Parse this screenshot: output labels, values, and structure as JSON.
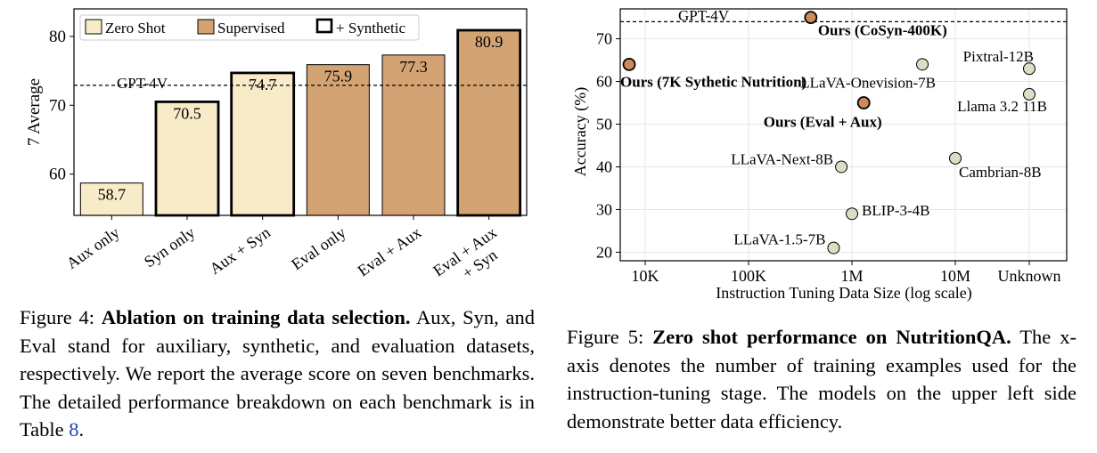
{
  "chart_data": [
    {
      "type": "bar",
      "ylabel": "7 Average",
      "ylim": [
        54,
        84
      ],
      "yticks": [
        "60",
        "70",
        "80"
      ],
      "legend": {
        "position": "top",
        "entries": [
          "Zero Shot",
          "Supervised",
          "+ Synthetic"
        ]
      },
      "reference_line": {
        "label": "GPT-4V",
        "value": 72.9
      },
      "categories": [
        "Aux only",
        "Syn only",
        "Aux + Syn",
        "Eval only",
        "Eval + Aux",
        "Eval + Aux\n+ Syn"
      ],
      "category_lines": [
        [
          "Aux only"
        ],
        [
          "Syn only"
        ],
        [
          "Aux + Syn"
        ],
        [
          "Eval only"
        ],
        [
          "Eval + Aux"
        ],
        [
          "Eval + Aux",
          "+ Syn"
        ]
      ],
      "values": [
        58.7,
        70.5,
        74.7,
        75.9,
        77.3,
        80.9
      ],
      "value_labels": [
        "58.7",
        "70.5",
        "74.7",
        "75.9",
        "77.3",
        "80.9"
      ],
      "setting": [
        "Zero Shot",
        "Zero Shot",
        "Zero Shot",
        "Supervised",
        "Supervised",
        "Supervised"
      ],
      "with_synthetic": [
        false,
        true,
        true,
        false,
        false,
        true
      ],
      "colors": {
        "zero_shot": "#f8ebc8",
        "supervised": "#d4a373",
        "edge": "#000000"
      }
    },
    {
      "type": "scatter",
      "xlabel": "Instruction Tuning Data Size (log scale)",
      "ylabel": "Accuracy (%)",
      "x_scale": "log",
      "xticks": [
        "10K",
        "100K",
        "1M",
        "10M",
        "Unknown"
      ],
      "yticks": [
        "20",
        "30",
        "40",
        "50",
        "60",
        "70"
      ],
      "ylim": [
        18,
        77
      ],
      "grid": true,
      "reference_line": {
        "label": "GPT-4V",
        "value": 74
      },
      "points": [
        {
          "label": "Ours (CoSyn-400K)",
          "x": "400K",
          "y": 75,
          "ours": true
        },
        {
          "label": "Ours (7K Sythetic Nutrition)",
          "x": "7K",
          "y": 64,
          "ours": true
        },
        {
          "label": "Ours (Eval + Aux)",
          "x": "1.3M",
          "y": 55,
          "ours": true
        },
        {
          "label": "LLaVA-Onevision-7B",
          "x": "4.8M",
          "y": 64,
          "ours": false
        },
        {
          "label": "Pixtral-12B",
          "x": "Unknown",
          "y": 63,
          "ours": false
        },
        {
          "label": "Llama 3.2 11B",
          "x": "Unknown",
          "y": 57,
          "ours": false
        },
        {
          "label": "LLaVA-Next-8B",
          "x": "790K",
          "y": 40,
          "ours": false
        },
        {
          "label": "Cambrian-8B",
          "x": "10M",
          "y": 42,
          "ours": false
        },
        {
          "label": "BLIP-3-4B",
          "x": "1M",
          "y": 29,
          "ours": false
        },
        {
          "label": "LLaVA-1.5-7B",
          "x": "665K",
          "y": 21,
          "ours": false
        }
      ],
      "colors": {
        "ours": "#cd8a5c",
        "others": "#d7dfc4",
        "edge": "#000000"
      }
    }
  ],
  "captions": {
    "fig4": {
      "label": "Figure 4:",
      "title": "Ablation on training data selection.",
      "text": "Aux, Syn, and Eval stand for auxiliary, synthetic, and evaluation datasets, respectively. We report the average score on seven benchmarks. The detailed performance breakdown on each benchmark is in Table",
      "ref": "8",
      "end": "."
    },
    "fig5": {
      "label": "Figure 5:",
      "title": "Zero shot performance on NutritionQA.",
      "text": "The x-axis denotes the number of training examples used for the instruction-tuning stage. The models on the upper left side demonstrate better data efficiency."
    }
  }
}
